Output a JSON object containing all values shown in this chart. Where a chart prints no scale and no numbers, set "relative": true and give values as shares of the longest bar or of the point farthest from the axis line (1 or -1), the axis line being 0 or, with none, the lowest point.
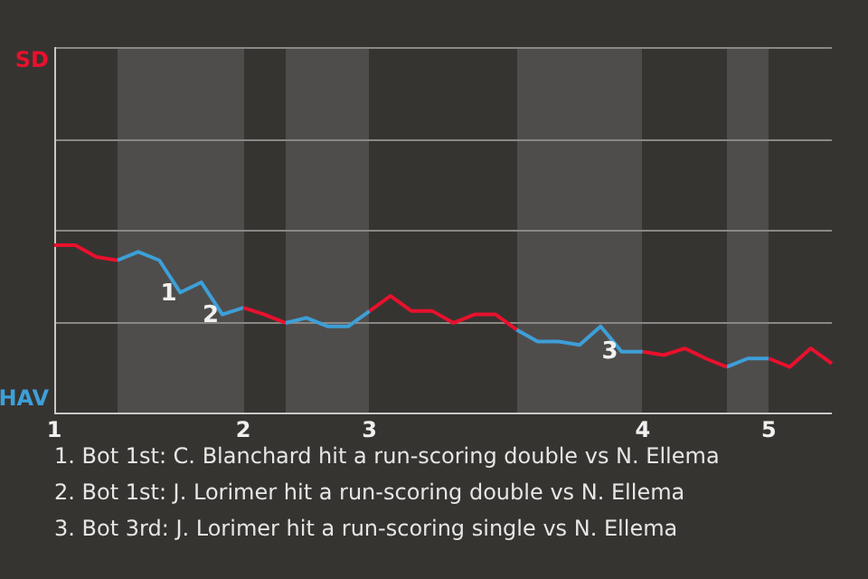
{
  "chart_data": {
    "type": "line",
    "relative": true,
    "categories": [
      "1",
      null,
      null,
      null,
      null,
      null,
      null,
      null,
      null,
      "2",
      null,
      null,
      null,
      null,
      null,
      "3",
      null,
      null,
      null,
      null,
      null,
      null,
      null,
      null,
      null,
      null,
      null,
      null,
      "4",
      null,
      null,
      null,
      null,
      null,
      "5",
      null,
      null,
      null
    ],
    "series": [
      {
        "name": "SD",
        "color": "#e8112d",
        "values": [
          1,
          1,
          0.93,
          0.91,
          null,
          null,
          null,
          null,
          null,
          0.63,
          0.59,
          0.54,
          null,
          null,
          null,
          0.61,
          0.7,
          0.61,
          0.61,
          0.54,
          0.59,
          0.59,
          0.5,
          null,
          null,
          null,
          null,
          null,
          0.37,
          0.35,
          0.39,
          0.33,
          0.28,
          null,
          0.33,
          0.28,
          0.39,
          0.3
        ]
      },
      {
        "name": "HAV",
        "color": "#3d9fd8",
        "values": [
          null,
          null,
          null,
          0.91,
          0.96,
          0.91,
          0.72,
          0.78,
          0.59,
          0.63,
          null,
          0.54,
          0.57,
          0.52,
          0.52,
          0.61,
          null,
          null,
          null,
          null,
          null,
          null,
          0.5,
          0.43,
          0.43,
          0.41,
          0.52,
          0.37,
          0.37,
          null,
          null,
          null,
          0.28,
          0.33,
          0.33,
          null,
          null,
          null
        ]
      }
    ],
    "ref_lines": [
      {
        "axis": "y",
        "value": 0.54,
        "color": "#8a8886"
      },
      {
        "axis": "y",
        "value": 1.09,
        "color": "#8a8886"
      },
      {
        "axis": "y",
        "value": 1.63,
        "color": "#8a8886"
      },
      {
        "axis": "y",
        "value": 2.17,
        "color": "#8a8886"
      }
    ],
    "annotations": [
      {
        "text": "1",
        "y": 0.72
      },
      {
        "text": "2",
        "y": 0.59
      },
      {
        "text": "3",
        "y": 0.37
      },
      "1. Bot 1st: C. Blanchard hit a run-scoring double vs N. Ellema",
      "2. Bot 1st: J. Lorimer hit a run-scoring double vs N. Ellema",
      "3. Bot 3rd: J. Lorimer hit a run-scoring single vs N. Ellema"
    ],
    "legend": "left",
    "marker": "none",
    "line_style": "solid"
  }
}
